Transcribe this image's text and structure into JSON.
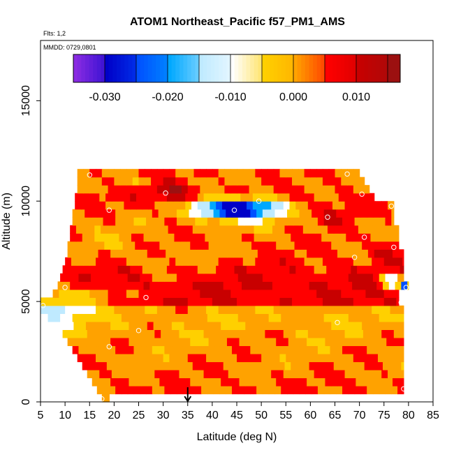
{
  "chart_data": {
    "type": "heatmap",
    "title": "ATOM1 Northeast_Pacific f57_PM1_AMS",
    "flights_label": "Flts: 1,2",
    "date_label": "MMDD: 0729,0801",
    "xlabel": "Latitude (deg N)",
    "ylabel": "Altitude (m)",
    "xlim": [
      5,
      85
    ],
    "ylim": [
      0,
      18000
    ],
    "x_ticks": [
      "5",
      "10",
      "15",
      "20",
      "25",
      "30",
      "35",
      "40",
      "45",
      "50",
      "55",
      "60",
      "65",
      "70",
      "75",
      "80",
      "85"
    ],
    "y_ticks": [
      "0",
      "5000",
      "10000",
      "15000"
    ],
    "colorbar": {
      "range": [
        -0.035,
        0.017
      ],
      "tick_labels": [
        "-0.030",
        "-0.020",
        "-0.010",
        "0.000",
        "0.010"
      ],
      "tick_values": [
        -0.03,
        -0.02,
        -0.01,
        0.0,
        0.01
      ],
      "bounds": [
        -0.035,
        -0.03,
        -0.025,
        -0.02,
        -0.015,
        -0.01,
        -0.005,
        0.0,
        0.005,
        0.01,
        0.015,
        0.017
      ],
      "colors": [
        "#8a2be2",
        "#0000c8",
        "#0050ff",
        "#00a8ff",
        "#bfeaff",
        "#ffffff",
        "#ffd000",
        "#ffa200",
        "#ff0000",
        "#c80000",
        "#9c1010"
      ]
    },
    "grid": false,
    "field": {
      "lat_step": 1.25,
      "alt_step": 400,
      "rows": [
        {
          "alt": 200,
          "lat_min": 17.5,
          "lat_max": 19,
          "value": 0.0045
        },
        {
          "alt": 600,
          "lat_min": 16.5,
          "lat_max": 79,
          "value": 0.0055
        },
        {
          "alt": 1000,
          "lat_min": 15.5,
          "lat_max": 79,
          "value": 0.0045
        },
        {
          "alt": 1400,
          "lat_min": 14.5,
          "lat_max": 79,
          "value": 0.004
        },
        {
          "alt": 1800,
          "lat_min": 13.5,
          "lat_max": 79,
          "value": 0.0035
        },
        {
          "alt": 2200,
          "lat_min": 12.5,
          "lat_max": 79,
          "value": 0.0035
        },
        {
          "alt": 2600,
          "lat_min": 11.5,
          "lat_max": 79,
          "value": 0.003
        },
        {
          "alt": 3000,
          "lat_min": 10.5,
          "lat_max": 79,
          "value": 0.0025
        },
        {
          "alt": 3400,
          "lat_min": 9.5,
          "lat_max": 79,
          "value": 0.002
        },
        {
          "alt": 3800,
          "lat_min": 8.0,
          "lat_max": 79,
          "value": 0.0015
        },
        {
          "alt": 4200,
          "lat_min": 6.5,
          "lat_max": 79,
          "value": 0.001
        },
        {
          "alt": 4600,
          "lat_min": 5.0,
          "lat_max": 79,
          "value": 0.0015
        },
        {
          "alt": 5000,
          "lat_min": 5.0,
          "lat_max": 78,
          "value": 0.009
        },
        {
          "alt": 5400,
          "lat_min": 7.5,
          "lat_max": 78,
          "value": 0.0085
        },
        {
          "alt": 5800,
          "lat_min": 8.5,
          "lat_max": 80,
          "value": 0.0095
        },
        {
          "alt": 6200,
          "lat_min": 9.0,
          "lat_max": 79,
          "value": 0.0085
        },
        {
          "alt": 6600,
          "lat_min": 9.5,
          "lat_max": 79,
          "value": 0.008
        },
        {
          "alt": 7000,
          "lat_min": 10.0,
          "lat_max": 79,
          "value": 0.0065
        },
        {
          "alt": 7400,
          "lat_min": 10.5,
          "lat_max": 79,
          "value": 0.0055
        },
        {
          "alt": 7800,
          "lat_min": 10.5,
          "lat_max": 78,
          "value": 0.005
        },
        {
          "alt": 8200,
          "lat_min": 11.0,
          "lat_max": 78,
          "value": 0.0045
        },
        {
          "alt": 8600,
          "lat_min": 11.0,
          "lat_max": 78,
          "value": 0.0035
        },
        {
          "alt": 9000,
          "lat_min": 11.5,
          "lat_max": 77,
          "value": 0.0035
        },
        {
          "alt": 9400,
          "lat_min": 11.5,
          "lat_max": 77,
          "value": 0.004
        },
        {
          "alt": 9800,
          "lat_min": 12.0,
          "lat_max": 77,
          "value": 0.005
        },
        {
          "alt": 10200,
          "lat_min": 12.0,
          "lat_max": 73,
          "value": 0.006
        },
        {
          "alt": 10600,
          "lat_min": 12.5,
          "lat_max": 72,
          "value": 0.005
        },
        {
          "alt": 11000,
          "lat_min": 12.5,
          "lat_max": 71,
          "value": 0.004
        },
        {
          "alt": 11400,
          "lat_min": 12.5,
          "lat_max": 70,
          "value": 0.0045
        }
      ],
      "features": [
        {
          "lat": 45,
          "alt": 9600,
          "dlat": 6,
          "dalt": 500,
          "amp": -0.038
        },
        {
          "lat": 38,
          "alt": 9700,
          "dlat": 3,
          "dalt": 450,
          "amp": -0.012
        },
        {
          "lat": 52,
          "alt": 9700,
          "dlat": 4,
          "dalt": 500,
          "amp": -0.012
        },
        {
          "lat": 32,
          "alt": 10500,
          "dlat": 5,
          "dalt": 500,
          "amp": 0.01
        },
        {
          "lat": 65,
          "alt": 9200,
          "dlat": 5,
          "dalt": 700,
          "amp": 0.005
        },
        {
          "lat": 25,
          "alt": 10900,
          "dlat": 4,
          "dalt": 300,
          "amp": -0.004
        },
        {
          "lat": 18,
          "alt": 8000,
          "dlat": 4,
          "dalt": 600,
          "amp": -0.004
        },
        {
          "lat": 28,
          "alt": 7000,
          "dlat": 6,
          "dalt": 700,
          "amp": -0.005
        },
        {
          "lat": 42,
          "alt": 7200,
          "dlat": 7,
          "dalt": 700,
          "amp": -0.002
        },
        {
          "lat": 75,
          "alt": 7600,
          "dlat": 3,
          "dalt": 500,
          "amp": 0.006
        },
        {
          "lat": 8,
          "alt": 4800,
          "dlat": 6,
          "dalt": 900,
          "amp": -0.016
        },
        {
          "lat": 16,
          "alt": 5300,
          "dlat": 4,
          "dalt": 500,
          "amp": -0.008
        },
        {
          "lat": 76,
          "alt": 6000,
          "dlat": 2,
          "dalt": 400,
          "amp": -0.022
        },
        {
          "lat": 79.5,
          "alt": 5800,
          "dlat": 0.9,
          "dalt": 250,
          "amp": -0.03
        },
        {
          "lat": 73,
          "alt": 5300,
          "dlat": 3,
          "dalt": 700,
          "amp": 0.003
        }
      ]
    },
    "sample_points": [
      {
        "lat": 17.5,
        "alt": 150
      },
      {
        "lat": 79,
        "alt": 650
      },
      {
        "lat": 19,
        "alt": 2750
      },
      {
        "lat": 25,
        "alt": 3550
      },
      {
        "lat": 65.5,
        "alt": 3950
      },
      {
        "lat": 5.5,
        "alt": 4800
      },
      {
        "lat": 26.5,
        "alt": 5200
      },
      {
        "lat": 78.5,
        "alt": 4950
      },
      {
        "lat": 10,
        "alt": 5700
      },
      {
        "lat": 79.5,
        "alt": 5700
      },
      {
        "lat": 69,
        "alt": 7200
      },
      {
        "lat": 77,
        "alt": 7700
      },
      {
        "lat": 71,
        "alt": 8200
      },
      {
        "lat": 63.5,
        "alt": 9200
      },
      {
        "lat": 19,
        "alt": 9550
      },
      {
        "lat": 44.5,
        "alt": 9550
      },
      {
        "lat": 76.5,
        "alt": 9750
      },
      {
        "lat": 49.5,
        "alt": 10000
      },
      {
        "lat": 30.5,
        "alt": 10400
      },
      {
        "lat": 70.5,
        "alt": 10350
      },
      {
        "lat": 15,
        "alt": 11300
      },
      {
        "lat": 67.5,
        "alt": 11350
      }
    ],
    "arrow_marker_lat": 35
  }
}
